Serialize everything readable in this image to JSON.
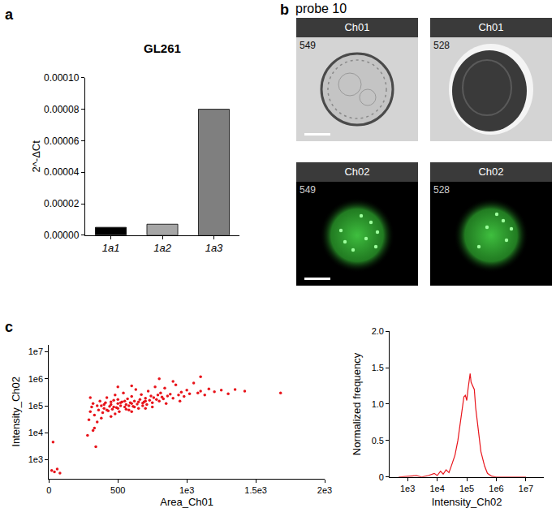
{
  "chart_data": [
    {
      "type": "bar",
      "panel_label": "a",
      "title": "GL261",
      "y_label": "2^-ΔCt",
      "categories": [
        "1a1",
        "1a2",
        "1a3"
      ],
      "values": [
        5e-06,
        7e-06,
        8e-05
      ],
      "colors": [
        "#000000",
        "#a6a6a6",
        "#7f7f7f"
      ],
      "ylim": [
        0,
        0.0001
      ],
      "yticks": [
        {
          "value": 0,
          "label": "0.00000"
        },
        {
          "value": 2e-05,
          "label": "0.00002"
        },
        {
          "value": 4e-05,
          "label": "0.00004"
        },
        {
          "value": 6e-05,
          "label": "0.00006"
        },
        {
          "value": 8e-05,
          "label": "0.00008"
        },
        {
          "value": 0.0001,
          "label": "0.00010"
        }
      ],
      "grid": false
    },
    {
      "type": "scatter",
      "panel_label": "c",
      "x_label": "Area_Ch01",
      "y_label": "Intensity_Ch02",
      "log": "y",
      "color": "#e8141b",
      "marker": "circle",
      "grid": false,
      "xlim": [
        0,
        2000
      ],
      "xticks": [
        0,
        500,
        {
          "value": 1000,
          "label": "1e3"
        },
        {
          "value": 1500,
          "label": "1.5e3"
        },
        {
          "value": 2000,
          "label": "2e3"
        }
      ],
      "ylim": [
        200,
        18000000
      ],
      "yticks": [
        {
          "value": 1000,
          "label": "1e3"
        },
        {
          "value": 10000,
          "label": "1e4"
        },
        {
          "value": 100000,
          "label": "1e5"
        },
        {
          "value": 1000000,
          "label": "1e6"
        },
        {
          "value": 10000000,
          "label": "1e7"
        }
      ],
      "x": [
        20,
        40,
        60,
        80,
        30,
        290,
        300,
        310,
        320,
        330,
        340,
        350,
        360,
        370,
        380,
        390,
        400,
        410,
        420,
        430,
        440,
        450,
        460,
        470,
        480,
        490,
        500,
        510,
        520,
        530,
        540,
        550,
        560,
        570,
        580,
        590,
        600,
        610,
        620,
        630,
        640,
        650,
        660,
        670,
        680,
        690,
        700,
        710,
        720,
        730,
        740,
        750,
        760,
        770,
        780,
        790,
        800,
        810,
        820,
        830,
        840,
        860,
        880,
        900,
        920,
        940,
        960,
        980,
        1000,
        1020,
        1050,
        1080,
        1100,
        1130,
        1160,
        1200,
        1250,
        1300,
        1350,
        1420,
        1680,
        350,
        400,
        420,
        450,
        470,
        500,
        500,
        520,
        550,
        560,
        580,
        600,
        620,
        650,
        680,
        700,
        300,
        280,
        320,
        330,
        500,
        600,
        800,
        900,
        1100,
        450,
        480,
        380,
        600,
        700,
        750,
        850,
        950
      ],
      "values": [
        400,
        350,
        450,
        320,
        4500,
        30000,
        60000,
        90000,
        120000,
        45000,
        3000,
        25000,
        70000,
        150000,
        100000,
        55000,
        80000,
        130000,
        200000,
        65000,
        95000,
        110000,
        75000,
        160000,
        250000,
        85000,
        120000,
        60000,
        100000,
        140000,
        300000,
        90000,
        110000,
        180000,
        70000,
        130000,
        220000,
        95000,
        150000,
        400000,
        115000,
        80000,
        170000,
        260000,
        125000,
        140000,
        190000,
        110000,
        350000,
        160000,
        230000,
        130000,
        200000,
        500000,
        170000,
        250000,
        150000,
        300000,
        210000,
        180000,
        450000,
        230000,
        270000,
        190000,
        600000,
        250000,
        320000,
        220000,
        380000,
        280000,
        700000,
        300000,
        350000,
        250000,
        420000,
        330000,
        380000,
        280000,
        400000,
        350000,
        300000,
        100000,
        110000,
        70000,
        140000,
        90000,
        80000,
        170000,
        130000,
        150000,
        75000,
        100000,
        120000,
        90000,
        140000,
        100000,
        150000,
        200000,
        8000,
        12000,
        15000,
        500000,
        550000,
        1000000,
        800000,
        1200000,
        40000,
        50000,
        35000,
        60000,
        80000,
        90000,
        120000,
        150000
      ]
    },
    {
      "type": "line",
      "x_label": "Intensity_Ch02",
      "y_label": "Normalized frequency",
      "log": "x",
      "color": "#e8141b",
      "line_style": "solid",
      "grid": false,
      "xlim": [
        250,
        40000000
      ],
      "xticks": [
        {
          "value": 1000,
          "label": "1e3"
        },
        {
          "value": 10000,
          "label": "1e4"
        },
        {
          "value": 100000,
          "label": "1e5"
        },
        {
          "value": 1000000,
          "label": "1e6"
        },
        {
          "value": 10000000,
          "label": "1e7"
        }
      ],
      "ylim": [
        0,
        2
      ],
      "yticks": [
        0,
        0.5,
        {
          "value": 1,
          "label": "1.0"
        },
        1.5,
        {
          "value": 2,
          "label": "2.0"
        }
      ],
      "x": [
        500,
        1000,
        2000,
        3000,
        5000,
        8000,
        10000,
        13000,
        16000,
        20000,
        25000,
        30000,
        40000,
        50000,
        60000,
        70000,
        80000,
        90000,
        100000,
        110000,
        120000,
        130000,
        140000,
        160000,
        180000,
        200000,
        250000,
        300000,
        400000,
        500000,
        700000,
        1000000,
        2000000,
        5000000,
        10000000
      ],
      "values": [
        0,
        0.01,
        0.02,
        0,
        0.02,
        0.05,
        0.02,
        0.08,
        0.04,
        0.1,
        0.06,
        0.15,
        0.3,
        0.5,
        0.75,
        0.95,
        1.1,
        1.12,
        1.05,
        1.2,
        1.35,
        1.42,
        1.3,
        1.25,
        1.2,
        0.95,
        0.6,
        0.35,
        0.15,
        0.05,
        0.01,
        0,
        0,
        0,
        0
      ]
    }
  ],
  "image_panel": {
    "panel_label": "b",
    "title": "probe 10",
    "tiles": [
      [
        {
          "header": "Ch01",
          "id": "549"
        },
        {
          "header": "Ch01",
          "id": "528"
        }
      ],
      [
        {
          "header": "Ch02",
          "id": "549"
        },
        {
          "header": "Ch02",
          "id": "528"
        }
      ]
    ]
  }
}
